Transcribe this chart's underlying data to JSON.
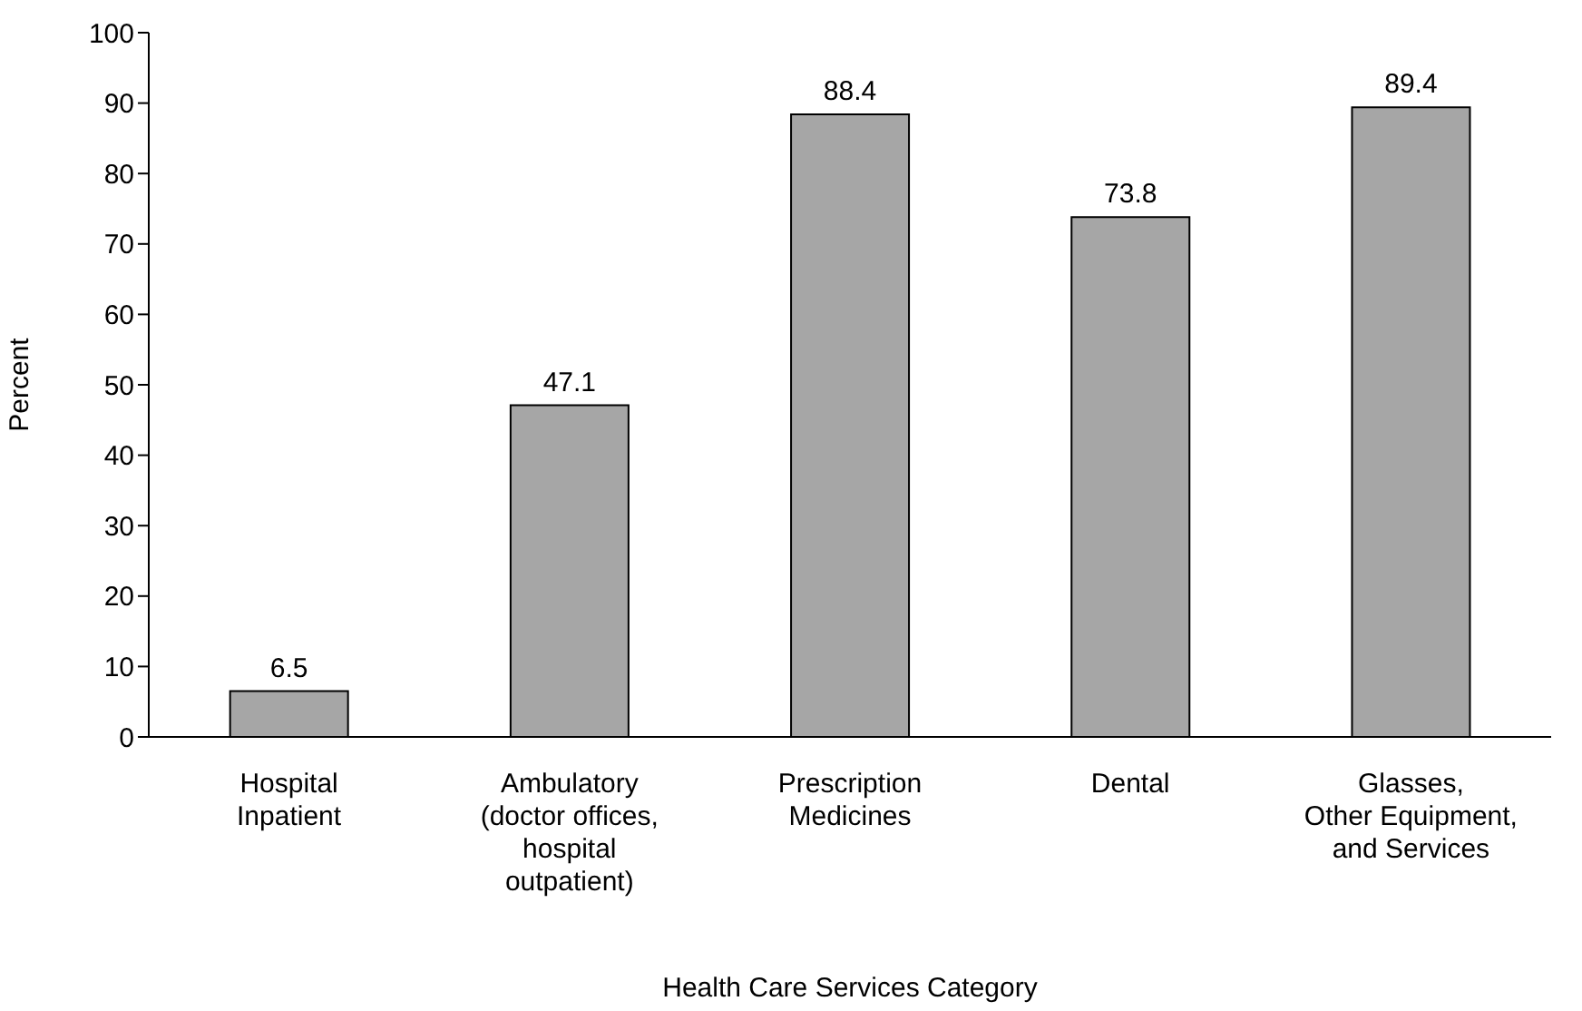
{
  "chart_data": {
    "type": "bar",
    "xlabel": "Health Care Services Category",
    "ylabel": "Percent",
    "categories": [
      "Hospital\nInpatient",
      "Ambulatory\n(doctor offices,\nhospital\noutpatient)",
      "Prescription\nMedicines",
      "Dental",
      "Glasses,\nOther Equipment,\nand Services"
    ],
    "values": [
      6.5,
      47.1,
      88.4,
      73.8,
      89.4
    ],
    "color": "#a6a6a6",
    "ylim": [
      0,
      100
    ],
    "yticks": [
      0,
      10,
      20,
      30,
      40,
      50,
      60,
      70,
      80,
      90,
      100
    ],
    "grid": false,
    "data_labels": true
  }
}
